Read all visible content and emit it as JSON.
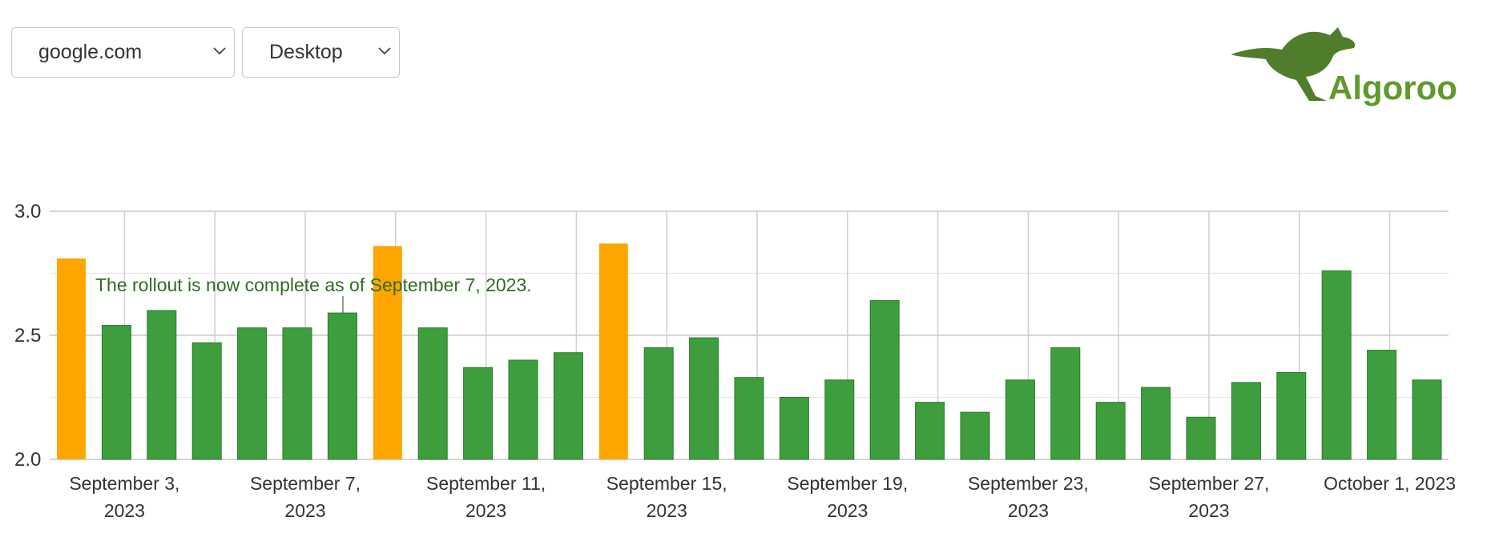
{
  "controls": {
    "domain": "google.com",
    "device": "Desktop"
  },
  "logo": "Algoroo",
  "chart_data": {
    "type": "bar",
    "categories": [
      null,
      "September 3, 2023",
      null,
      null,
      null,
      "September 7, 2023",
      null,
      null,
      null,
      "September 11, 2023",
      null,
      null,
      null,
      "September 15, 2023",
      null,
      null,
      null,
      "September 19, 2023",
      null,
      null,
      null,
      "September 23, 2023",
      null,
      null,
      null,
      "September 27, 2023",
      null,
      null,
      null,
      "October 1, 2023",
      null
    ],
    "values": [
      2.81,
      2.54,
      2.6,
      2.47,
      2.53,
      2.53,
      2.59,
      2.86,
      2.53,
      2.37,
      2.4,
      2.43,
      2.87,
      2.45,
      2.49,
      2.33,
      2.25,
      2.32,
      2.64,
      2.23,
      2.19,
      2.32,
      2.45,
      2.23,
      2.29,
      2.17,
      2.31,
      2.35,
      2.76,
      2.44,
      2.32
    ],
    "colors": [
      "#ffa500",
      "#3e9e3e",
      "#3e9e3e",
      "#3e9e3e",
      "#3e9e3e",
      "#3e9e3e",
      "#3e9e3e",
      "#ffa500",
      "#3e9e3e",
      "#3e9e3e",
      "#3e9e3e",
      "#3e9e3e",
      "#ffa500",
      "#3e9e3e",
      "#3e9e3e",
      "#3e9e3e",
      "#3e9e3e",
      "#3e9e3e",
      "#3e9e3e",
      "#3e9e3e",
      "#3e9e3e",
      "#3e9e3e",
      "#3e9e3e",
      "#3e9e3e",
      "#3e9e3e",
      "#3e9e3e",
      "#3e9e3e",
      "#3e9e3e",
      "#3e9e3e",
      "#3e9e3e",
      "#3e9e3e"
    ],
    "ylim": [
      2.0,
      3.0
    ],
    "yticks": [
      {
        "value": 2.0,
        "label": "2.0"
      },
      {
        "value": 2.5,
        "label": "2.5"
      },
      {
        "value": 3.0,
        "label": "3.0"
      }
    ],
    "minor_yticks": [
      2.25,
      2.75
    ],
    "grid": true,
    "annotation": "The rollout is now complete as of September 7, 2023."
  }
}
